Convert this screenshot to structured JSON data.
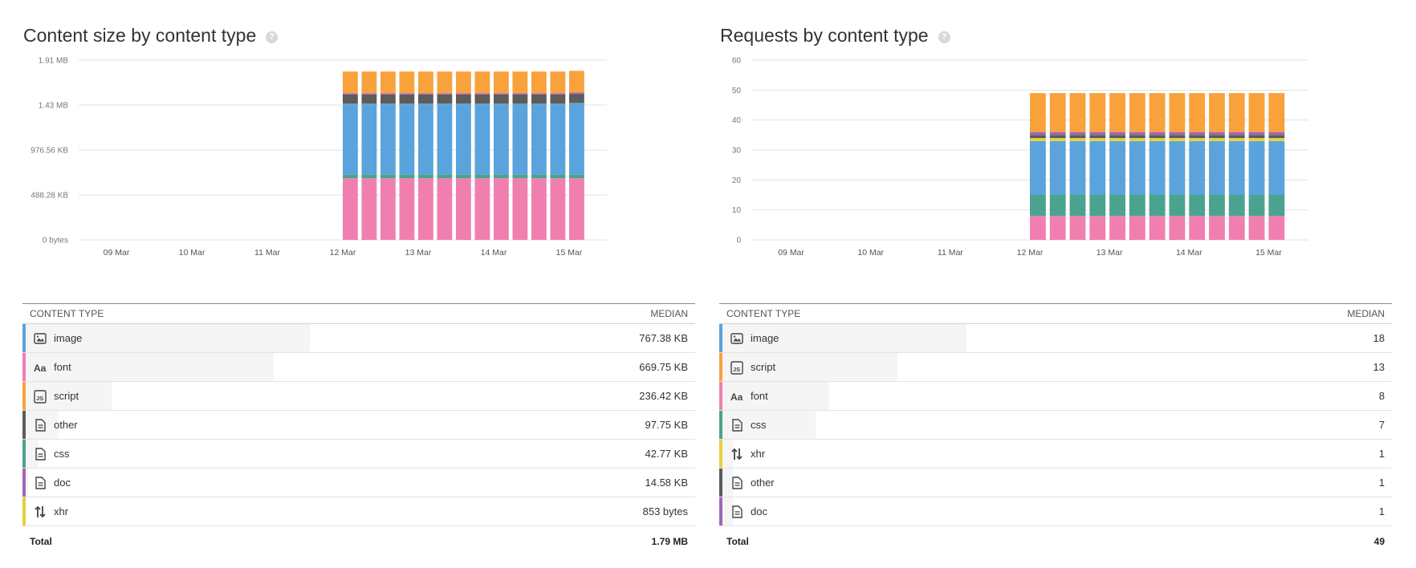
{
  "panels": [
    {
      "title": "Content size by content type",
      "help": "?",
      "table": {
        "col_type": "CONTENT TYPE",
        "col_median": "MEDIAN",
        "rows": [
          {
            "type": "image",
            "median": "767.38 KB",
            "icon": "image-icon",
            "color": "#5ba3dc",
            "share": 0.427
          },
          {
            "type": "font",
            "median": "669.75 KB",
            "icon": "font-icon",
            "color": "#f07fb0",
            "share": 0.373
          },
          {
            "type": "script",
            "median": "236.42 KB",
            "icon": "script-icon",
            "color": "#f9a23c",
            "share": 0.132
          },
          {
            "type": "other",
            "median": "97.75 KB",
            "icon": "document-icon",
            "color": "#5c5c5c",
            "share": 0.054
          },
          {
            "type": "css",
            "median": "42.77 KB",
            "icon": "document-icon",
            "color": "#4aa38f",
            "share": 0.024
          },
          {
            "type": "doc",
            "median": "14.58 KB",
            "icon": "document-icon",
            "color": "#a066b5",
            "share": 0.008
          },
          {
            "type": "xhr",
            "median": "853 bytes",
            "icon": "xhr-arrows-icon",
            "color": "#e6d03a",
            "share": 0.0005
          }
        ],
        "total_label": "Total",
        "total_value": "1.79 MB"
      }
    },
    {
      "title": "Requests by content type",
      "help": "?",
      "table": {
        "col_type": "CONTENT TYPE",
        "col_median": "MEDIAN",
        "rows": [
          {
            "type": "image",
            "median": "18",
            "icon": "image-icon",
            "color": "#5ba3dc",
            "share": 0.367
          },
          {
            "type": "script",
            "median": "13",
            "icon": "script-icon",
            "color": "#f9a23c",
            "share": 0.265
          },
          {
            "type": "font",
            "median": "8",
            "icon": "font-icon",
            "color": "#f07fb0",
            "share": 0.163
          },
          {
            "type": "css",
            "median": "7",
            "icon": "document-icon",
            "color": "#4aa38f",
            "share": 0.143
          },
          {
            "type": "xhr",
            "median": "1",
            "icon": "xhr-arrows-icon",
            "color": "#e6d03a",
            "share": 0.02
          },
          {
            "type": "other",
            "median": "1",
            "icon": "document-icon",
            "color": "#5c5c5c",
            "share": 0.02
          },
          {
            "type": "doc",
            "median": "1",
            "icon": "document-icon",
            "color": "#a066b5",
            "share": 0.02
          }
        ],
        "total_label": "Total",
        "total_value": "49"
      }
    }
  ],
  "chart_data": [
    {
      "type": "bar",
      "stacked": true,
      "title": "Content size by content type",
      "unit": "KB",
      "y_ticks": [
        {
          "value": 0,
          "label": "0 bytes"
        },
        {
          "value": 488.28,
          "label": "488.28 KB"
        },
        {
          "value": 976.56,
          "label": "976.56 KB"
        },
        {
          "value": 1464.84,
          "label": "1.43 MB"
        },
        {
          "value": 1953.12,
          "label": "1.91 MB"
        }
      ],
      "ylim": [
        0,
        1953.12
      ],
      "x_ticks": [
        "09 Mar",
        "10 Mar",
        "11 Mar",
        "12 Mar",
        "13 Mar",
        "14 Mar",
        "15 Mar"
      ],
      "x_range": [
        0,
        7
      ],
      "bar_positions": [
        3.5,
        3.75,
        4.0,
        4.25,
        4.5,
        4.75,
        5.0,
        5.25,
        5.5,
        5.75,
        6.0,
        6.25,
        6.5
      ],
      "series": [
        {
          "name": "font",
          "color": "#f07fb0",
          "values": [
            669.75,
            669.75,
            669.75,
            669.75,
            669.75,
            669.75,
            669.75,
            669.75,
            669.75,
            669.75,
            669.75,
            669.75,
            669.75
          ]
        },
        {
          "name": "css",
          "color": "#4aa38f",
          "values": [
            42.77,
            42.77,
            42.77,
            42.77,
            42.77,
            42.77,
            42.77,
            42.77,
            42.77,
            42.77,
            42.77,
            42.77,
            42.77
          ]
        },
        {
          "name": "image",
          "color": "#5ba3dc",
          "values": [
            767.38,
            767.38,
            767.38,
            767.38,
            767.38,
            767.38,
            767.38,
            767.38,
            767.38,
            767.38,
            767.38,
            767.38,
            775
          ]
        },
        {
          "name": "xhr",
          "color": "#e6d03a",
          "values": [
            0.83,
            0.83,
            0.83,
            0.83,
            0.83,
            0.83,
            0.83,
            0.83,
            0.83,
            0.83,
            0.83,
            0.83,
            0.83
          ]
        },
        {
          "name": "other",
          "color": "#5c5c5c",
          "values": [
            97.75,
            97.75,
            97.75,
            97.75,
            97.75,
            97.75,
            97.75,
            97.75,
            97.75,
            97.75,
            97.75,
            97.75,
            97.75
          ]
        },
        {
          "name": "doc",
          "color": "#a066b5",
          "values": [
            14.58,
            14.58,
            14.58,
            14.58,
            14.58,
            14.58,
            14.58,
            14.58,
            14.58,
            14.58,
            14.58,
            14.58,
            14.58
          ]
        },
        {
          "name": "script",
          "color": "#f9a23c",
          "values": [
            236.42,
            236.42,
            236.42,
            236.42,
            236.42,
            236.42,
            236.42,
            236.42,
            236.42,
            236.42,
            236.42,
            236.42,
            236.42
          ]
        }
      ],
      "grid": true
    },
    {
      "type": "bar",
      "stacked": true,
      "title": "Requests by content type",
      "y_ticks": [
        {
          "value": 0,
          "label": "0"
        },
        {
          "value": 10,
          "label": "10"
        },
        {
          "value": 20,
          "label": "20"
        },
        {
          "value": 30,
          "label": "30"
        },
        {
          "value": 40,
          "label": "40"
        },
        {
          "value": 50,
          "label": "50"
        },
        {
          "value": 60,
          "label": "60"
        }
      ],
      "ylim": [
        0,
        60
      ],
      "x_ticks": [
        "09 Mar",
        "10 Mar",
        "11 Mar",
        "12 Mar",
        "13 Mar",
        "14 Mar",
        "15 Mar"
      ],
      "x_range": [
        0,
        7
      ],
      "bar_positions": [
        3.5,
        3.75,
        4.0,
        4.25,
        4.5,
        4.75,
        5.0,
        5.25,
        5.5,
        5.75,
        6.0,
        6.25,
        6.5
      ],
      "series": [
        {
          "name": "font",
          "color": "#f07fb0",
          "values": [
            8,
            8,
            8,
            8,
            8,
            8,
            8,
            8,
            8,
            8,
            8,
            8,
            8
          ]
        },
        {
          "name": "css",
          "color": "#4aa38f",
          "values": [
            7,
            7,
            7,
            7,
            7,
            7,
            7,
            7,
            7,
            7,
            7,
            7,
            7
          ]
        },
        {
          "name": "image",
          "color": "#5ba3dc",
          "values": [
            18,
            18,
            18,
            18,
            18,
            18,
            18,
            18,
            18,
            18,
            18,
            18,
            18
          ]
        },
        {
          "name": "xhr",
          "color": "#e6d03a",
          "values": [
            1,
            1,
            1,
            1,
            1,
            1,
            1,
            1,
            1,
            1,
            1,
            1,
            1
          ]
        },
        {
          "name": "other",
          "color": "#5c5c5c",
          "values": [
            1,
            1,
            1,
            1,
            1,
            1,
            1,
            1,
            1,
            1,
            1,
            1,
            1
          ]
        },
        {
          "name": "doc",
          "color": "#a066b5",
          "values": [
            1,
            1,
            1,
            1,
            1,
            1,
            1,
            1,
            1,
            1,
            1,
            1,
            1
          ]
        },
        {
          "name": "script",
          "color": "#f9a23c",
          "values": [
            13,
            13,
            13,
            13,
            13,
            13,
            13,
            13,
            13,
            13,
            13,
            13,
            13
          ]
        }
      ],
      "grid": true
    }
  ]
}
